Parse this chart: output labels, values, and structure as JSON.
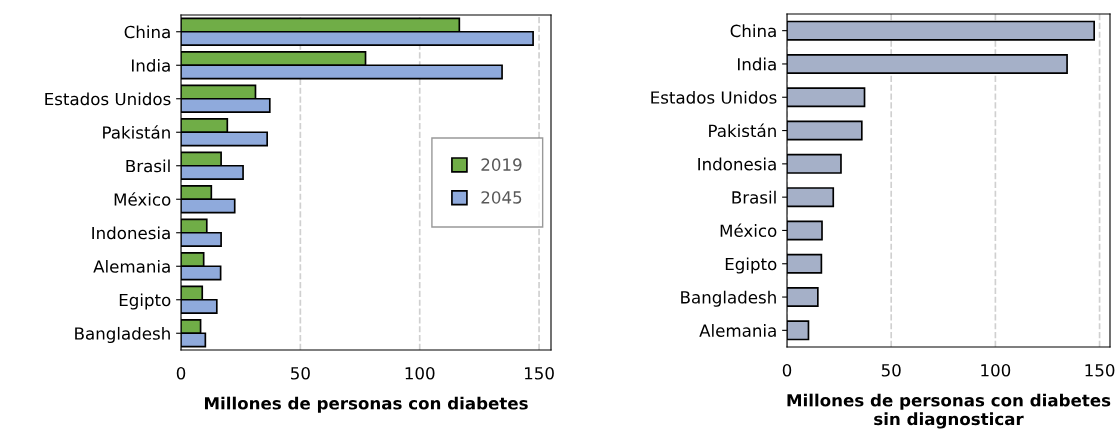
{
  "chart_data": [
    {
      "type": "bar",
      "orientation": "horizontal",
      "categories": [
        "China",
        "India",
        "Estados Unidos",
        "Pakistán",
        "Brasil",
        "México",
        "Indonesia",
        "Alemania",
        "Egipto",
        "Bangladesh"
      ],
      "series": [
        {
          "name": "2019",
          "color": "#70ad47",
          "values": [
            116.6,
            77.3,
            31.2,
            19.4,
            16.8,
            12.7,
            10.8,
            9.5,
            8.9,
            8.2
          ]
        },
        {
          "name": "2045",
          "color": "#8faadc",
          "values": [
            147.5,
            134.5,
            37.2,
            36.1,
            26.0,
            22.5,
            16.8,
            16.6,
            15.0,
            10.2
          ]
        }
      ],
      "xlim": [
        0,
        155
      ],
      "xticks": [
        0,
        50,
        100,
        150
      ],
      "xlabel": "Millones de personas con diabetes",
      "grid": "x",
      "legend": "center right"
    },
    {
      "type": "bar",
      "orientation": "horizontal",
      "categories": [
        "China",
        "India",
        "Estados Unidos",
        "Pakistán",
        "Indonesia",
        "Brasil",
        "México",
        "Egipto",
        "Bangladesh",
        "Alemania"
      ],
      "series": [
        {
          "color": "#a5b0c8",
          "values": [
            147.4,
            134.4,
            37.2,
            35.9,
            25.9,
            22.2,
            16.8,
            16.5,
            14.8,
            10.3
          ]
        }
      ],
      "xlim": [
        0,
        155
      ],
      "xticks": [
        0,
        50,
        100,
        150
      ],
      "xlabel": "Millones de personas con diabetes sin diagnosticar",
      "grid": "x"
    }
  ]
}
